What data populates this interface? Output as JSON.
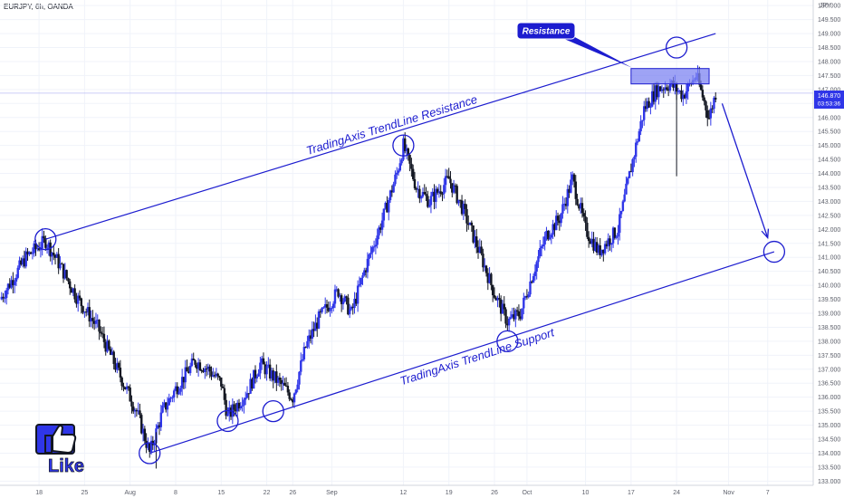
{
  "header": {
    "symbol": "EURJPY, 6h, OANDA",
    "currency": "JPY"
  },
  "colors": {
    "up": "#2f36e8",
    "down": "#131722",
    "annotation": "#1c1ccf",
    "resistance_fill": "#7d84f2"
  },
  "price_badge": {
    "price": "146.870",
    "countdown": "03:53:36"
  },
  "chart_data": {
    "type": "candlestick",
    "title": "EURJPY, 6h, OANDA",
    "ylabel": "JPY",
    "ylim": [
      132.85,
      150.2
    ],
    "yticks": [
      133,
      133.5,
      134,
      134.5,
      135,
      135.5,
      136,
      136.5,
      137,
      137.5,
      138,
      138.5,
      139,
      139.5,
      140,
      140.5,
      141,
      141.5,
      142,
      142.5,
      143,
      143.5,
      144,
      144.5,
      145,
      145.5,
      146,
      146.5,
      147,
      147.5,
      148,
      148.5,
      149,
      149.5,
      150
    ],
    "ytick_labels": [
      "133.000",
      "133.500",
      "134.000",
      "134.500",
      "135.000",
      "135.500",
      "136.000",
      "136.500",
      "137.000",
      "137.500",
      "138.000",
      "138.500",
      "139.000",
      "139.500",
      "140.000",
      "140.500",
      "141.000",
      "141.500",
      "142.000",
      "142.500",
      "143.000",
      "143.500",
      "144.000",
      "144.500",
      "145.000",
      "145.500",
      "146.000",
      "146.500",
      "147.000",
      "147.500",
      "148.000",
      "148.500",
      "149.000",
      "149.500",
      "150.000"
    ],
    "xticks": [
      {
        "label": "18",
        "date": "2024-07-18"
      },
      {
        "label": "25",
        "date": "2024-07-25"
      },
      {
        "label": "Aug",
        "date": "2024-08-01"
      },
      {
        "label": "8",
        "date": "2024-08-08"
      },
      {
        "label": "15",
        "date": "2024-08-15"
      },
      {
        "label": "22",
        "date": "2024-08-22"
      },
      {
        "label": "26",
        "date": "2024-08-26"
      },
      {
        "label": "Sep",
        "date": "2024-09-01"
      },
      {
        "label": "12",
        "date": "2024-09-12"
      },
      {
        "label": "19",
        "date": "2024-09-19"
      },
      {
        "label": "26",
        "date": "2024-09-26"
      },
      {
        "label": "Oct",
        "date": "2024-10-01"
      },
      {
        "label": "10",
        "date": "2024-10-10"
      },
      {
        "label": "17",
        "date": "2024-10-17"
      },
      {
        "label": "24",
        "date": "2024-10-24"
      },
      {
        "label": "Nov",
        "date": "2024-11-01"
      },
      {
        "label": "7",
        "date": "2024-11-07"
      }
    ],
    "xlim": [
      "2024-07-12",
      "2024-11-14"
    ],
    "close_path": [
      [
        "2024-07-12",
        139.5
      ],
      [
        "2024-07-16",
        141.0
      ],
      [
        "2024-07-19",
        141.6
      ],
      [
        "2024-07-21",
        140.8
      ],
      [
        "2024-07-24",
        139.5
      ],
      [
        "2024-07-27",
        138.5
      ],
      [
        "2024-07-30",
        137.0
      ],
      [
        "2024-08-02",
        135.5
      ],
      [
        "2024-08-04",
        134.0
      ],
      [
        "2024-08-06",
        135.5
      ],
      [
        "2024-08-08",
        136.3
      ],
      [
        "2024-08-11",
        137.3
      ],
      [
        "2024-08-13",
        137.0
      ],
      [
        "2024-08-15",
        136.5
      ],
      [
        "2024-08-16",
        135.3
      ],
      [
        "2024-08-19",
        136.2
      ],
      [
        "2024-08-21",
        137.2
      ],
      [
        "2024-08-24",
        136.5
      ],
      [
        "2024-08-26",
        136.0
      ],
      [
        "2024-08-28",
        137.8
      ],
      [
        "2024-08-30",
        138.8
      ],
      [
        "2024-09-02",
        139.8
      ],
      [
        "2024-09-04",
        139.0
      ],
      [
        "2024-09-06",
        140.5
      ],
      [
        "2024-09-09",
        142.5
      ],
      [
        "2024-09-11",
        144.0
      ],
      [
        "2024-09-12",
        145.0
      ],
      [
        "2024-09-14",
        143.5
      ],
      [
        "2024-09-16",
        143.0
      ],
      [
        "2024-09-19",
        143.8
      ],
      [
        "2024-09-21",
        142.8
      ],
      [
        "2024-09-24",
        141.0
      ],
      [
        "2024-09-26",
        139.7
      ],
      [
        "2024-09-28",
        138.7
      ],
      [
        "2024-09-30",
        139.0
      ],
      [
        "2024-10-02",
        140.5
      ],
      [
        "2024-10-04",
        141.8
      ],
      [
        "2024-10-06",
        142.4
      ],
      [
        "2024-10-08",
        143.8
      ],
      [
        "2024-10-10",
        142.0
      ],
      [
        "2024-10-12",
        141.2
      ],
      [
        "2024-10-15",
        142.0
      ],
      [
        "2024-10-17",
        144.2
      ],
      [
        "2024-10-19",
        146.3
      ],
      [
        "2024-10-21",
        147.0
      ],
      [
        "2024-10-23",
        147.2
      ],
      [
        "2024-10-25",
        146.8
      ],
      [
        "2024-10-27",
        147.5
      ],
      [
        "2024-10-29",
        146.0
      ],
      [
        "2024-10-30",
        146.87
      ]
    ],
    "notable_wicks": [
      {
        "date": "2024-08-05",
        "low": 133.45
      },
      {
        "date": "2024-10-24",
        "low": 143.9
      }
    ],
    "trendlines": [
      {
        "label": "TradingAxis TrendLine Resistance",
        "start": [
          "2024-07-19",
          141.65
        ],
        "end": [
          "2024-10-30",
          149.0
        ]
      },
      {
        "label": "TradingAxis TrendLine Support",
        "start": [
          "2024-08-04",
          134.0
        ],
        "end": [
          "2024-11-08",
          141.2
        ]
      }
    ],
    "resistance_zone": {
      "label": "Resistance",
      "from": "2024-10-17",
      "to": "2024-10-29",
      "low": 147.2,
      "high": 147.75
    },
    "projection_arrow": {
      "start": [
        "2024-10-31",
        146.5
      ],
      "end": [
        "2024-11-07",
        141.7
      ]
    },
    "circles": [
      [
        "2024-07-19",
        141.65
      ],
      [
        "2024-08-04",
        134.0
      ],
      [
        "2024-08-16",
        135.15
      ],
      [
        "2024-08-23",
        135.5
      ],
      [
        "2024-09-12",
        145.0
      ],
      [
        "2024-09-28",
        138.0
      ],
      [
        "2024-10-24",
        148.5
      ],
      [
        "2024-11-08",
        141.2
      ]
    ],
    "last_price": 146.87,
    "grid": true
  },
  "like_badge": {
    "text": "Like"
  }
}
